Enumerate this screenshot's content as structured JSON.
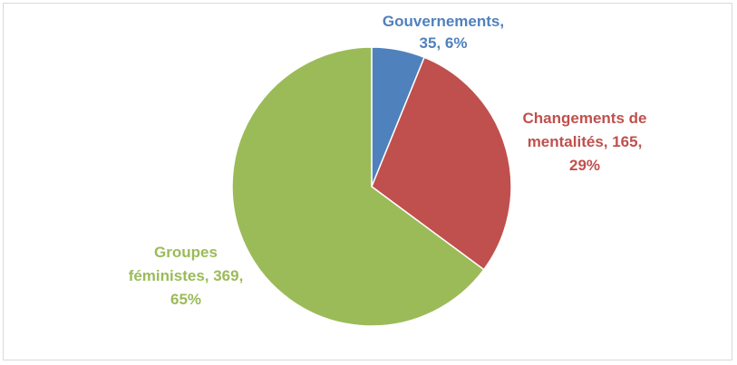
{
  "chart_data": {
    "type": "pie",
    "title": "",
    "slices": [
      {
        "name": "Gouvernements",
        "value": 35,
        "percent": 6,
        "color": "#4f81bd",
        "label_lines": [
          "Gouvernements,",
          "35, 6%"
        ]
      },
      {
        "name": "Changements de mentalités",
        "value": 165,
        "percent": 29,
        "color": "#c0504d",
        "label_lines": [
          "Changements de",
          "mentalités, 165,",
          "29%"
        ]
      },
      {
        "name": "Groupes féministes",
        "value": 369,
        "percent": 65,
        "color": "#9bbb59",
        "label_lines": [
          "Groupes",
          "féministes, 369,",
          "65%"
        ]
      }
    ],
    "legend": "none",
    "data_labels": "outside, category name + value + percentage"
  }
}
